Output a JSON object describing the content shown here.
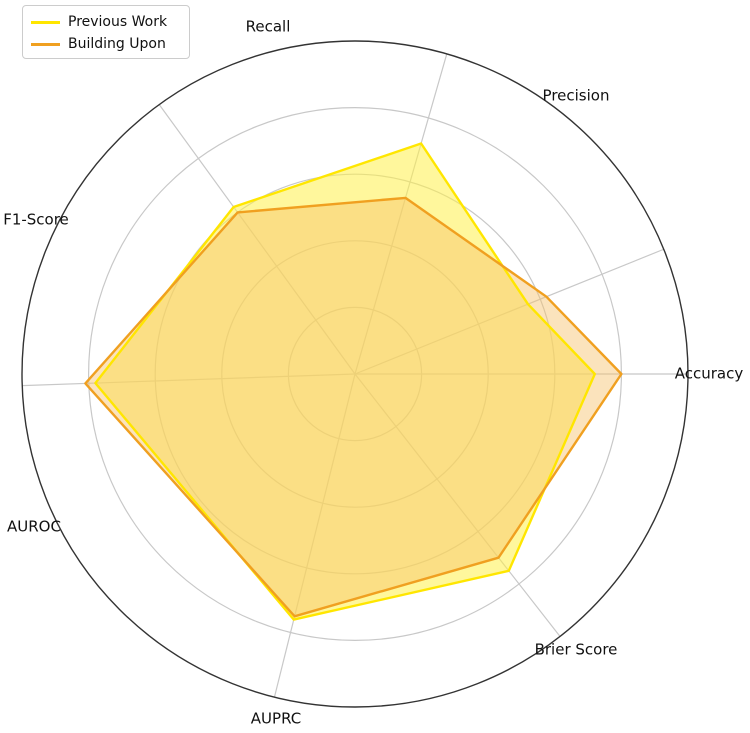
{
  "chart_data": {
    "type": "radar",
    "axes": [
      "Accuracy",
      "Precision",
      "Recall",
      "F1-Score",
      "AUROC",
      "AUPRC",
      "Brier Score"
    ],
    "rlim": [
      0,
      1
    ],
    "grid": true,
    "legend_position": "top-left",
    "series": [
      {
        "name": "Previous Work",
        "values": [
          0.72,
          0.56,
          0.72,
          0.62,
          0.78,
          0.76,
          0.75
        ],
        "line_color": "#ffe600",
        "fill_color": "#fff04a",
        "fill_opacity": 0.55
      },
      {
        "name": "Building Upon",
        "values": [
          0.8,
          0.62,
          0.55,
          0.6,
          0.81,
          0.75,
          0.7
        ],
        "line_color": "#f0a020",
        "fill_color": "#f6c26b",
        "fill_opacity": 0.45
      }
    ]
  }
}
